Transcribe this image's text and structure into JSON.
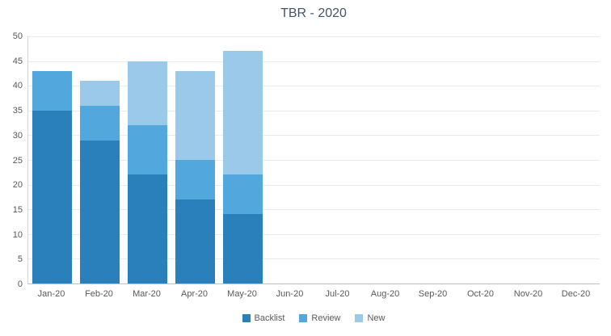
{
  "chart_data": {
    "type": "bar",
    "stacked": true,
    "title": "TBR - 2020",
    "categories": [
      "Jan-20",
      "Feb-20",
      "Mar-20",
      "Apr-20",
      "May-20",
      "Jun-20",
      "Jul-20",
      "Aug-20",
      "Sep-20",
      "Oct-20",
      "Nov-20",
      "Dec-20"
    ],
    "series": [
      {
        "name": "Backlist",
        "color": "#2a80bb",
        "values": [
          35,
          29,
          22,
          17,
          14,
          0,
          0,
          0,
          0,
          0,
          0,
          0
        ]
      },
      {
        "name": "Review",
        "color": "#52a7dc",
        "values": [
          8,
          7,
          10,
          8,
          8,
          0,
          0,
          0,
          0,
          0,
          0,
          0
        ]
      },
      {
        "name": "New",
        "color": "#9ac9ea",
        "values": [
          0,
          5,
          13,
          18,
          25,
          0,
          0,
          0,
          0,
          0,
          0,
          0
        ]
      }
    ],
    "totals": [
      43,
      41,
      45,
      43,
      47,
      0,
      0,
      0,
      0,
      0,
      0,
      0
    ],
    "xlabel": "",
    "ylabel": "",
    "ylim": [
      0,
      50
    ],
    "ytick_step": 5,
    "grid": true,
    "legend_position": "bottom"
  }
}
